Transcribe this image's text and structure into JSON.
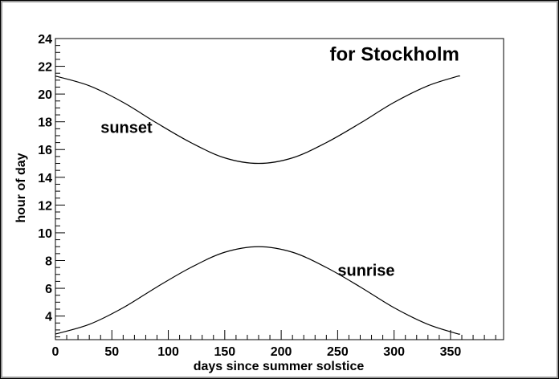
{
  "chart_data": {
    "type": "line",
    "title": "for Stockholm",
    "xlabel": "days since summer solstice",
    "ylabel": "hour of day",
    "xlim": [
      0,
      397
    ],
    "ylim": [
      2.3,
      24
    ],
    "x_ticks": [
      0,
      50,
      100,
      150,
      200,
      250,
      300,
      350
    ],
    "y_ticks": [
      4,
      6,
      8,
      10,
      12,
      14,
      16,
      18,
      20,
      22,
      24
    ],
    "grid": false,
    "series": [
      {
        "name": "sunset",
        "x": [
          0,
          30,
          60,
          90,
          120,
          150,
          180,
          210,
          240,
          270,
          300,
          330,
          357
        ],
        "y": [
          21.3,
          20.6,
          19.4,
          17.9,
          16.5,
          15.4,
          15.0,
          15.4,
          16.5,
          17.9,
          19.4,
          20.6,
          21.3
        ]
      },
      {
        "name": "sunrise",
        "x": [
          0,
          30,
          60,
          90,
          120,
          150,
          180,
          210,
          240,
          270,
          300,
          330,
          357
        ],
        "y": [
          2.7,
          3.4,
          4.6,
          6.1,
          7.5,
          8.6,
          9.0,
          8.6,
          7.5,
          6.1,
          4.6,
          3.4,
          2.7
        ]
      }
    ],
    "annotations": [
      {
        "text": "for Stockholm",
        "x": 243,
        "y": 22.4
      },
      {
        "text": "sunset",
        "x": 40,
        "y": 17.2
      },
      {
        "text": "sunrise",
        "x": 250,
        "y": 6.9
      }
    ],
    "line_color": "#000000",
    "background": "#ffffff"
  }
}
